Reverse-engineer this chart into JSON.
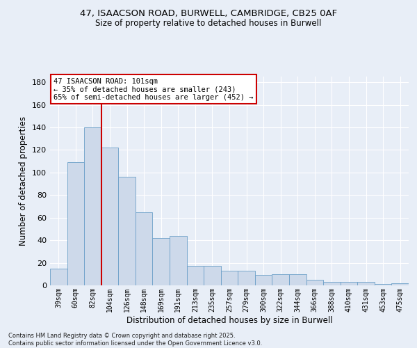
{
  "title_line1": "47, ISAACSON ROAD, BURWELL, CAMBRIDGE, CB25 0AF",
  "title_line2": "Size of property relative to detached houses in Burwell",
  "xlabel": "Distribution of detached houses by size in Burwell",
  "ylabel": "Number of detached properties",
  "categories": [
    "39sqm",
    "60sqm",
    "82sqm",
    "104sqm",
    "126sqm",
    "148sqm",
    "169sqm",
    "191sqm",
    "213sqm",
    "235sqm",
    "257sqm",
    "279sqm",
    "300sqm",
    "322sqm",
    "344sqm",
    "366sqm",
    "388sqm",
    "410sqm",
    "431sqm",
    "453sqm",
    "475sqm"
  ],
  "values": [
    15,
    109,
    140,
    122,
    96,
    65,
    42,
    44,
    17,
    17,
    13,
    13,
    9,
    10,
    10,
    5,
    3,
    3,
    3,
    1,
    2
  ],
  "bar_color": "#cdd9ea",
  "bar_edge_color": "#6b9fc8",
  "background_color": "#e8eef7",
  "grid_color": "#ffffff",
  "vline_color": "#cc0000",
  "vline_x_index": 3,
  "annotation_title": "47 ISAACSON ROAD: 101sqm",
  "annotation_line1": "← 35% of detached houses are smaller (243)",
  "annotation_line2": "65% of semi-detached houses are larger (452) →",
  "annotation_box_facecolor": "#ffffff",
  "annotation_box_edgecolor": "#cc0000",
  "ylim": [
    0,
    185
  ],
  "yticks": [
    0,
    20,
    40,
    60,
    80,
    100,
    120,
    140,
    160,
    180
  ],
  "footer_line1": "Contains HM Land Registry data © Crown copyright and database right 2025.",
  "footer_line2": "Contains public sector information licensed under the Open Government Licence v3.0."
}
